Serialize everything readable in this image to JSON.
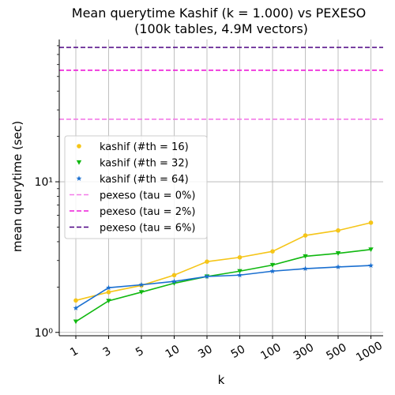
{
  "chart_data": {
    "type": "line",
    "title": "Mean querytime Kashif (k = 1.000) vs PEXESO",
    "subtitle": "(100k tables, 4.9M vectors)",
    "xlabel": "k",
    "ylabel": "mean querytime (sec)",
    "yscale": "log",
    "ylim": [
      0.95,
      88
    ],
    "y_ticks": [
      {
        "value": 1,
        "label": "10⁰"
      },
      {
        "value": 10,
        "label": "10¹"
      }
    ],
    "categories": [
      "1",
      "3",
      "5",
      "10",
      "30",
      "50",
      "100",
      "300",
      "500",
      "1000"
    ],
    "grid": true,
    "legend_position": "upper-left",
    "series": [
      {
        "name": "kashif (#th = 16)",
        "color": "#f5c518",
        "marker": "circle",
        "values": [
          1.63,
          1.85,
          2.05,
          2.4,
          2.95,
          3.15,
          3.45,
          4.4,
          4.75,
          5.35
        ]
      },
      {
        "name": "kashif (#th = 32)",
        "color": "#10b810",
        "marker": "triangle-down",
        "values": [
          1.18,
          1.62,
          1.85,
          2.12,
          2.35,
          2.55,
          2.8,
          3.2,
          3.35,
          3.55
        ]
      },
      {
        "name": "kashif (#th = 64)",
        "color": "#1a6fd0",
        "marker": "star",
        "values": [
          1.45,
          1.98,
          2.07,
          2.18,
          2.35,
          2.4,
          2.55,
          2.65,
          2.72,
          2.78
        ]
      }
    ],
    "reference_lines": [
      {
        "name": "pexeso (tau = 0%)",
        "color": "#f47ce8",
        "value": 26
      },
      {
        "name": "pexeso (tau = 2%)",
        "color": "#ee1bd8",
        "value": 55
      },
      {
        "name": "pexeso (tau = 6%)",
        "color": "#4b0082",
        "value": 78
      }
    ]
  }
}
